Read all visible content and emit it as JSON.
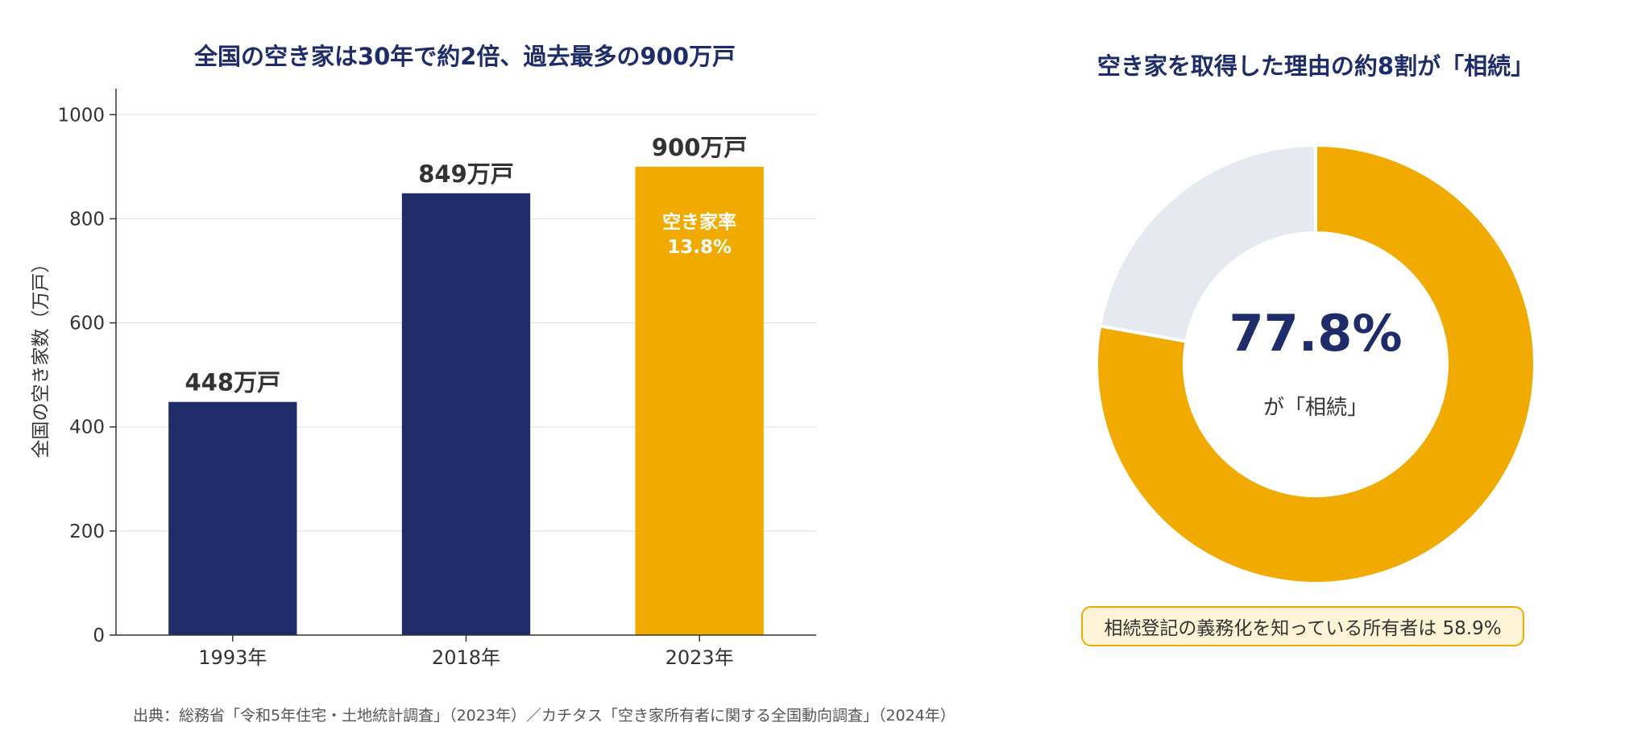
{
  "colors": {
    "navy": "#1E2D69",
    "accent": "#F0AA00",
    "remainder": "#E6E9F0",
    "callout_bg": "#FDF3D6"
  },
  "chart_data": [
    {
      "type": "bar",
      "title": "全国の空き家は30年で約2倍、過去最多の900万戸",
      "ylabel": "全国の空き家数（万戸）",
      "xlabel": "",
      "categories": [
        "1993年",
        "2018年",
        "2023年"
      ],
      "values": [
        448,
        849,
        900
      ],
      "data_labels": [
        "448万戸",
        "849万戸",
        "900万戸"
      ],
      "bar_colors": [
        "#1E2D69",
        "#1E2D69",
        "#F0AA00"
      ],
      "highlight_annotation": {
        "line1": "空き家率",
        "line2": "13.8%"
      },
      "ylim": [
        0,
        1050
      ],
      "yticks": [
        0,
        200,
        400,
        600,
        800,
        1000
      ],
      "grid": true
    },
    {
      "type": "pie",
      "title": "空き家を取得した理由の約8割が「相続」",
      "values": [
        77.8,
        22.2
      ],
      "colors": [
        "#F0AA00",
        "#E6E9F0"
      ],
      "center_value": "77.8%",
      "center_label": "が「相続」"
    }
  ],
  "callout": "相続登記の義務化を知っている所有者は 58.9%",
  "source": "出典：総務省「令和5年住宅・土地統計調査」（2023年）／カチタス「空き家所有者に関する全国動向調査」（2024年）"
}
